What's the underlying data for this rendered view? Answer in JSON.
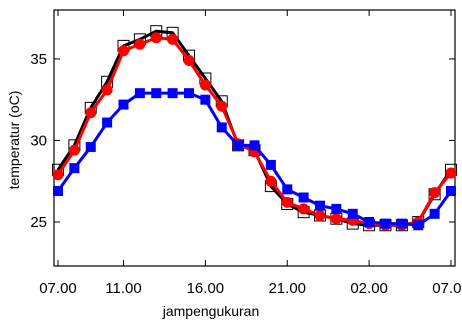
{
  "chart_data": {
    "type": "line",
    "xlabel": "jampengukuran",
    "ylabel": "temperatur (oC)",
    "xlim": [
      0,
      24
    ],
    "ylim": [
      22.3,
      38.0
    ],
    "x_ticks": [
      {
        "x": 0,
        "label": "07.00"
      },
      {
        "x": 4,
        "label": "11.00"
      },
      {
        "x": 9,
        "label": "16.00"
      },
      {
        "x": 14,
        "label": "21.00"
      },
      {
        "x": 19,
        "label": "02.00"
      },
      {
        "x": 24,
        "label": "07.00"
      }
    ],
    "y_ticks": [
      {
        "y": 25,
        "label": "25"
      },
      {
        "y": 30,
        "label": "30"
      },
      {
        "y": 35,
        "label": "35"
      }
    ],
    "x": [
      0,
      1,
      2,
      3,
      4,
      5,
      6,
      7,
      8,
      9,
      10,
      11,
      12,
      13,
      14,
      15,
      16,
      17,
      18,
      19,
      20,
      21,
      22,
      23,
      24
    ],
    "series": [
      {
        "color": "#000000",
        "marker": "open-square",
        "values": [
          28.2,
          29.7,
          32.0,
          33.6,
          35.8,
          36.2,
          36.7,
          36.6,
          35.2,
          33.8,
          32.4,
          29.7,
          29.4,
          27.2,
          26.1,
          25.6,
          25.4,
          25.2,
          24.9,
          24.8,
          24.8,
          24.8,
          25.0,
          26.7,
          28.2
        ]
      },
      {
        "color": "#ff0000",
        "marker": "filled-circle",
        "values": [
          27.9,
          29.4,
          31.7,
          33.1,
          35.5,
          35.9,
          36.3,
          36.2,
          34.9,
          33.4,
          32.1,
          29.8,
          29.3,
          27.5,
          26.2,
          25.8,
          25.4,
          25.2,
          25.1,
          24.9,
          24.8,
          24.8,
          25.0,
          26.8,
          28.0
        ]
      },
      {
        "color": "#0000ff",
        "marker": "filled-square",
        "values": [
          26.9,
          28.3,
          29.6,
          31.1,
          32.2,
          32.9,
          32.9,
          32.9,
          32.9,
          32.5,
          30.8,
          29.7,
          29.7,
          28.5,
          27.0,
          26.5,
          26.0,
          25.8,
          25.5,
          25.0,
          24.9,
          24.9,
          24.8,
          25.5,
          26.9
        ]
      }
    ],
    "grid": false,
    "legend": "none"
  }
}
